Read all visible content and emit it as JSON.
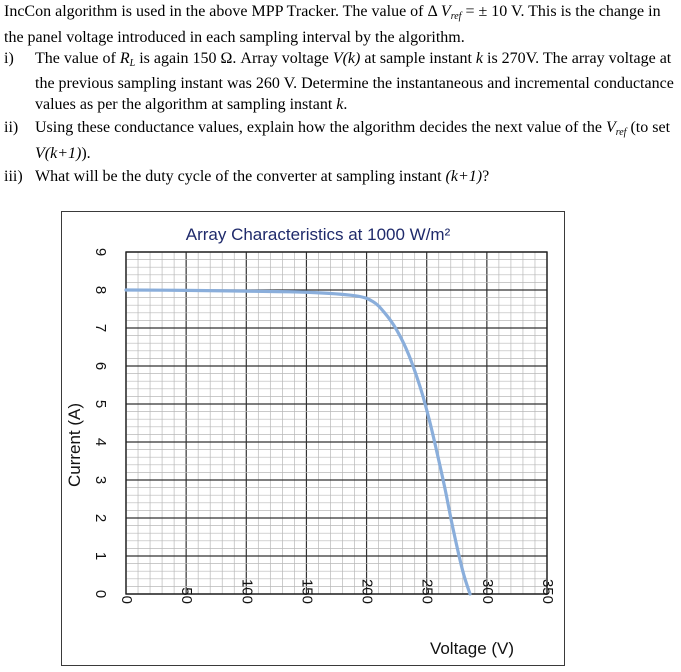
{
  "problem": {
    "intro_a": "IncCon algorithm is used in the above MPP Tracker. The value of Δ ",
    "intro_vref_v": "V",
    "intro_vref_sub": "ref",
    "intro_b": " = ± 10 V. This is the change in the panel voltage introduced in each sampling interval by the algorithm.",
    "items": [
      {
        "num": "i)",
        "t1": "The value of ",
        "rl_r": "R",
        "rl_sub": "L",
        "t2": " is again 150 Ω. Array voltage ",
        "vk": "V(k)",
        "t3": " at sample instant ",
        "k1": "k",
        "t4": " is 270V. The array voltage at the previous sampling instant was 260 V. Determine the instantaneous and incremental conductance values as per the algorithm at sampling instant ",
        "k2": "k",
        "t5": "."
      },
      {
        "num": "ii)",
        "t1": "Using these conductance values, explain how the algorithm decides the next value of the ",
        "vref_v": "V",
        "vref_sub": "ref",
        "t2": " (to set ",
        "vk1": "V(k+1)",
        "t3": ")."
      },
      {
        "num": "iii)",
        "t1": "What will be the duty cycle of the converter at sampling instant ",
        "k1": "(k+1)",
        "t2": "?"
      }
    ]
  },
  "chart_data": {
    "type": "line",
    "title": "Array Characteristics at 1000 W/m²",
    "xlabel": "Voltage (V)",
    "ylabel": "Current (A)",
    "xlim": [
      0,
      350
    ],
    "ylim": [
      0,
      9
    ],
    "xticks": [
      "0",
      "50",
      "100",
      "150",
      "200",
      "250",
      "300",
      "350"
    ],
    "yticks": [
      "0",
      "1",
      "2",
      "3",
      "4",
      "5",
      "6",
      "7",
      "8",
      "9"
    ],
    "grid": true,
    "series": [
      {
        "color": "#8aaedb",
        "x": [
          0,
          50,
          100,
          150,
          190,
          205,
          215,
          225,
          235,
          245,
          252,
          258,
          265,
          272,
          280,
          286
        ],
        "y": [
          8.0,
          7.99,
          7.97,
          7.94,
          7.85,
          7.7,
          7.4,
          6.95,
          6.3,
          5.4,
          4.6,
          3.8,
          2.8,
          1.7,
          0.6,
          0
        ]
      }
    ]
  }
}
